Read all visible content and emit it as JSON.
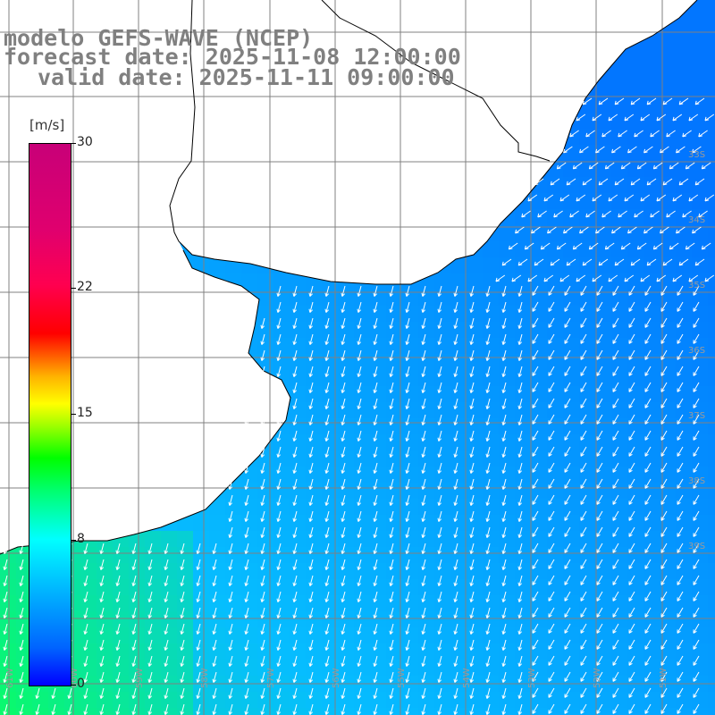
{
  "title": {
    "line1": "modelo GEFS-WAVE (NCEP)",
    "line2": "forecast date: 2025-11-08 12:00:00",
    "line3": "valid date: 2025-11-11 09:00:00"
  },
  "colorbar": {
    "unit": "[m/s]",
    "min": 0,
    "max": 30,
    "ticks": [
      {
        "value": 30,
        "label": "30"
      },
      {
        "value": 22,
        "label": "22"
      },
      {
        "value": 15,
        "label": "15"
      },
      {
        "value": 8,
        "label": "8"
      },
      {
        "value": 0,
        "label": "0"
      }
    ]
  },
  "map": {
    "lat_labels": [
      "33S",
      "34S",
      "35S",
      "36S",
      "37S",
      "38S",
      "39S"
    ],
    "lon_labels": [
      "61W",
      "60W",
      "59W",
      "58W",
      "57W",
      "56W",
      "55W",
      "54W",
      "53W",
      "52W",
      "51W"
    ],
    "colors": {
      "land": "#ffffff",
      "grid": "#808080",
      "coast": "#000000",
      "arrow": "#ffffff"
    },
    "field_description": "wind speed colored field with white direction arrows, mostly from the northeast"
  }
}
